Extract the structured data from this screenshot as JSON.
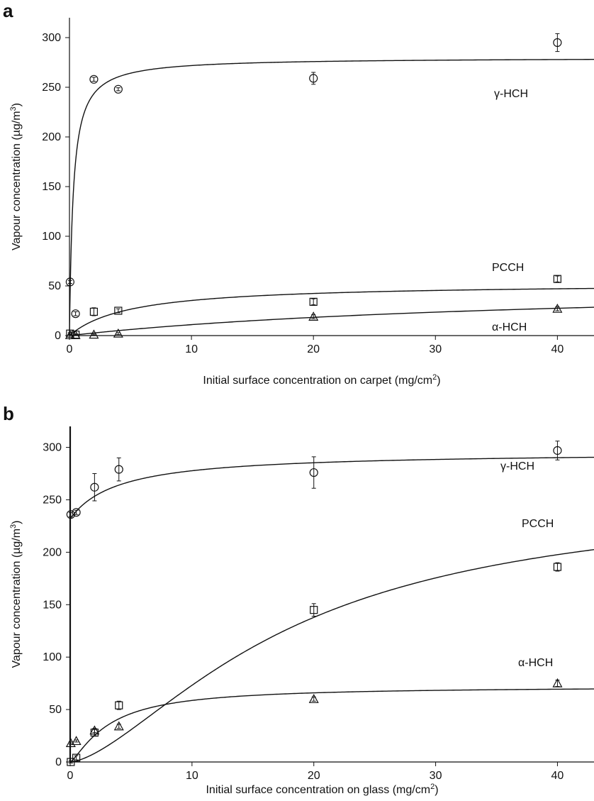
{
  "chart_data": [
    {
      "panel": "a",
      "type": "scatter",
      "xlabel": "Initial surface concentration on carpet (mg/cm²)",
      "ylabel": "Vapour concentration (µg/m³)",
      "xlim": [
        0,
        43
      ],
      "ylim": [
        0,
        320
      ],
      "xticks": [
        0,
        10,
        20,
        30,
        40
      ],
      "yticks": [
        0,
        50,
        100,
        150,
        200,
        250,
        300
      ],
      "grid": false,
      "series": [
        {
          "name": "γ-HCH",
          "marker": "circle",
          "x": [
            0.05,
            0.5,
            2,
            4,
            20,
            40
          ],
          "y": [
            54,
            22,
            258,
            248,
            259,
            295
          ],
          "err": [
            1.5,
            2,
            2,
            1.5,
            6,
            9
          ],
          "fit": {
            "max": 280,
            "k": 0.3
          }
        },
        {
          "name": "PCCH",
          "marker": "square",
          "x": [
            0.05,
            0.5,
            2,
            4,
            20,
            40
          ],
          "y": [
            2,
            1,
            24,
            25,
            34,
            57
          ],
          "err": [
            1,
            1,
            4,
            2,
            3,
            3
          ],
          "fit": {
            "max": 53,
            "k": 5
          }
        },
        {
          "name": "α-HCH",
          "marker": "triangle",
          "x": [
            0.05,
            0.5,
            2,
            4,
            20,
            40
          ],
          "y": [
            0.5,
            0.5,
            1,
            2,
            19,
            27
          ],
          "err": [
            0.5,
            0.5,
            0.5,
            1,
            2,
            2
          ],
          "fit": {
            "max": 55,
            "k": 40
          }
        }
      ]
    },
    {
      "panel": "b",
      "type": "scatter",
      "xlabel": "Initial surface concentration on glass (mg/cm²)",
      "ylabel": "Vapour concentration (µg/m³)",
      "xlim": [
        0,
        43
      ],
      "ylim": [
        0,
        320
      ],
      "xticks": [
        0,
        10,
        20,
        30,
        40
      ],
      "yticks": [
        0,
        50,
        100,
        150,
        200,
        250,
        300
      ],
      "grid": false,
      "series": [
        {
          "name": "γ-HCH",
          "marker": "circle",
          "x": [
            0.05,
            0.5,
            2,
            4,
            20,
            40
          ],
          "y": [
            236,
            238,
            262,
            279,
            276,
            297
          ],
          "err": [
            2,
            2,
            13,
            11,
            15,
            9
          ],
          "fit": {
            "base": 232,
            "max": 64,
            "k": 4
          }
        },
        {
          "name": "PCCH",
          "marker": "square",
          "x": [
            0.05,
            0.5,
            2,
            4,
            20,
            40
          ],
          "y": [
            0,
            4,
            28,
            54,
            145,
            186
          ],
          "err": [
            1,
            2,
            3,
            4,
            6,
            4
          ],
          "fit": {
            "max": 255,
            "k": 18,
            "n": 1.55
          }
        },
        {
          "name": "α-HCH",
          "marker": "triangle",
          "x": [
            0.05,
            0.5,
            2,
            4,
            20,
            40
          ],
          "y": [
            18,
            20,
            30,
            34,
            60,
            75
          ],
          "err": [
            1,
            1,
            2,
            2,
            2,
            3
          ],
          "fit": {
            "max": 72,
            "k": 3.2,
            "n": 1.3
          }
        }
      ]
    }
  ],
  "panels": {
    "a": {
      "letter": "a",
      "labels": [
        "γ-HCH",
        "PCCH",
        "α-HCH"
      ]
    },
    "b": {
      "letter": "b",
      "labels": [
        "γ-HCH",
        "PCCH",
        "α-HCH"
      ]
    }
  }
}
